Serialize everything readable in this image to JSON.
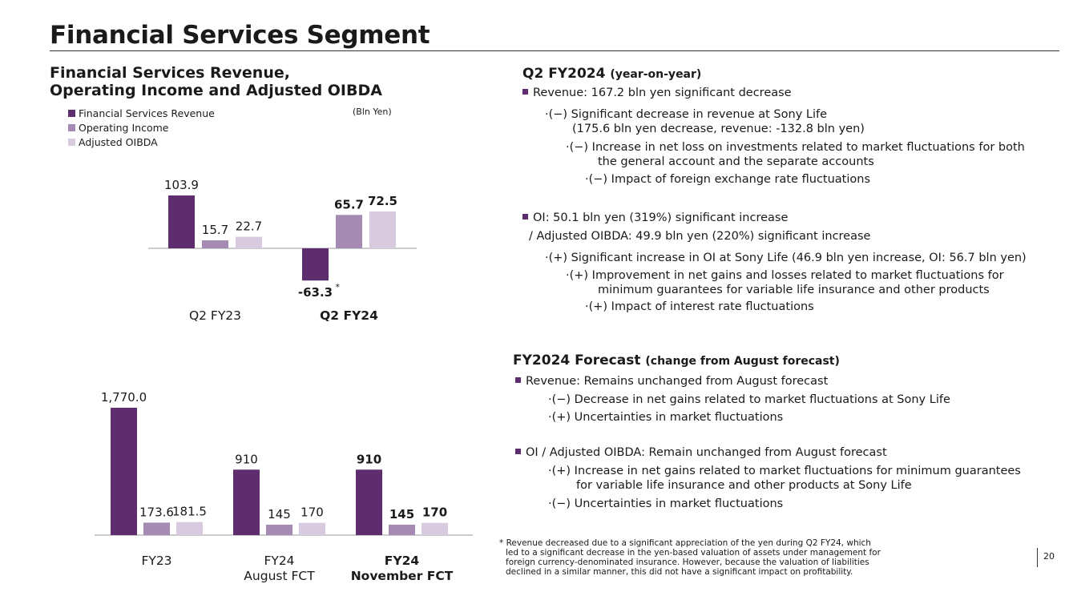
{
  "page": {
    "title": "Financial Services Segment",
    "page_number": "20"
  },
  "colors": {
    "revenue": "#5e2d6e",
    "oi": "#a58bb3",
    "oibda": "#d8cbdf"
  },
  "chart_data": [
    {
      "type": "bar",
      "title": "Financial Services Revenue,\nOperating Income and Adjusted OIBDA",
      "title_lines": [
        "Financial Services Revenue,",
        "Operating Income and Adjusted OIBDA"
      ],
      "unit": "(Bln Yen)",
      "legend": [
        "Financial Services Revenue",
        "Operating Income",
        "Adjusted OIBDA"
      ],
      "categories": [
        "Q2 FY23",
        "Q2 FY24"
      ],
      "series": [
        {
          "name": "Financial Services Revenue",
          "values": [
            103.9,
            -63.3
          ],
          "labels": [
            "103.9",
            "-63.3"
          ]
        },
        {
          "name": "Operating Income",
          "values": [
            15.7,
            65.7
          ],
          "labels": [
            "15.7",
            "65.7"
          ]
        },
        {
          "name": "Adjusted OIBDA",
          "values": [
            22.7,
            72.5
          ],
          "labels": [
            "22.7",
            "72.5"
          ]
        }
      ],
      "footnote_marker": "*"
    },
    {
      "type": "bar",
      "categories": [
        "FY23",
        "FY24\nAugust FCT",
        "FY24\nNovember FCT"
      ],
      "category_lines": [
        [
          "FY23"
        ],
        [
          "FY24",
          "August FCT"
        ],
        [
          "FY24",
          "November FCT"
        ]
      ],
      "series": [
        {
          "name": "Financial Services Revenue",
          "values": [
            1770.0,
            910,
            910
          ],
          "labels": [
            "1,770.0",
            "910",
            "910"
          ]
        },
        {
          "name": "Operating Income",
          "values": [
            173.6,
            145,
            145
          ],
          "labels": [
            "173.6",
            "145",
            "145"
          ]
        },
        {
          "name": "Adjusted OIBDA",
          "values": [
            181.5,
            170,
            170
          ],
          "labels": [
            "181.5",
            "170",
            "170"
          ]
        }
      ]
    }
  ],
  "right": {
    "q2": {
      "heading": "Q2 FY2024",
      "heading_sub": "(year-on-year)",
      "revenue_line": "Revenue: 167.2 bln yen significant decrease",
      "l1": "·(−) Significant decrease in revenue at Sony Life",
      "l2": "(175.6 bln yen decrease, revenue: -132.8 bln yen)",
      "l3": "·(−) Increase in net loss on investments related to market fluctuations for both",
      "l4": "the general account and the separate accounts",
      "l5": "·(−) Impact of foreign exchange rate fluctuations",
      "oi_line": "OI: 50.1 bln yen (319%) significant increase",
      "oibda_line": "/ Adjusted OIBDA: 49.9 bln yen (220%) significant increase",
      "m1": "·(+) Significant increase in OI at Sony Life (46.9 bln yen increase, OI: 56.7 bln yen)",
      "m2": "·(+) Improvement in net gains and losses related to market fluctuations for",
      "m3": "minimum guarantees for variable life insurance and other products",
      "m4": "·(+) Impact of interest rate fluctuations"
    },
    "fc": {
      "heading": "FY2024 Forecast",
      "heading_sub": "(change from August forecast)",
      "revenue_line": "Revenue: Remains unchanged from August forecast",
      "r1": "·(−) Decrease in net gains related to market fluctuations at Sony Life",
      "r2": "·(+) Uncertainties in market fluctuations",
      "oi_line": "OI / Adjusted OIBDA: Remain unchanged from August forecast",
      "o1": "·(+) Increase in net gains related to market fluctuations for minimum guarantees",
      "o2": "for variable life insurance and other products at Sony Life",
      "o3": "·(−) Uncertainties in market fluctuations"
    }
  },
  "footnote": {
    "marker": "*",
    "lines": [
      "Revenue decreased due to a significant appreciation of the yen during Q2 FY24, which",
      "led to a significant decrease in the yen-based valuation of assets under management for",
      "foreign currency-denominated insurance. However, because the valuation of liabilities",
      "declined in a similar manner, this did not have a significant impact on profitability."
    ]
  }
}
